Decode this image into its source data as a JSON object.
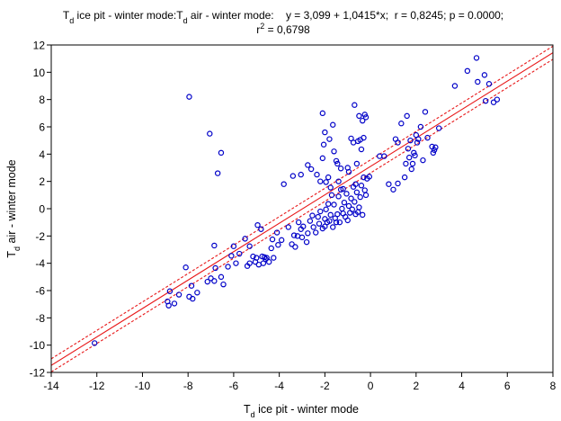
{
  "chart_data": {
    "type": "scatter",
    "title": {
      "line1_prefix": "T",
      "line1_sub": "d",
      "line1_mid": " ice pit - winter mode:T",
      "line1_sub2": "d",
      "line1_rest": " air - winter mode:    y = 3,099 + 1,0415*x;  r = 0,8245; p = 0.0000;",
      "line2_prefix": "r",
      "line2_sup": "2",
      "line2_rest": " = 0,6798"
    },
    "xlabel": {
      "prefix": "T",
      "sub": "d",
      "rest": " ice pit - winter mode"
    },
    "ylabel": {
      "prefix": "T",
      "sub": "d",
      "rest": " air - winter mode"
    },
    "xlim": [
      -14,
      8
    ],
    "ylim": [
      -12,
      12
    ],
    "xticks": [
      -14,
      -12,
      -10,
      -8,
      -6,
      -4,
      -2,
      0,
      2,
      4,
      6,
      8
    ],
    "yticks": [
      -12,
      -10,
      -8,
      -6,
      -4,
      -2,
      0,
      2,
      4,
      6,
      8,
      10,
      12
    ],
    "grid": false,
    "colors": {
      "points": "#0000c8",
      "fit": "#e8191a"
    },
    "regression": {
      "intercept": 3.099,
      "slope": 1.0415
    },
    "confidence_band_halfwidth": 0.48,
    "points": [
      [
        -12.1,
        -9.85
      ],
      [
        -8.9,
        -6.8
      ],
      [
        -8.85,
        -7.1
      ],
      [
        -8.8,
        -6.05
      ],
      [
        -8.6,
        -6.95
      ],
      [
        -8.4,
        -6.3
      ],
      [
        -8.1,
        -4.3
      ],
      [
        -7.95,
        -6.45
      ],
      [
        -7.85,
        -5.65
      ],
      [
        -7.8,
        -6.6
      ],
      [
        -7.6,
        -6.15
      ],
      [
        -7.15,
        -5.35
      ],
      [
        -7.0,
        -5.1
      ],
      [
        -6.85,
        -5.3
      ],
      [
        -6.8,
        -4.35
      ],
      [
        -6.85,
        -2.7
      ],
      [
        -6.55,
        -5.0
      ],
      [
        -6.45,
        -5.55
      ],
      [
        -6.25,
        -4.25
      ],
      [
        -6.1,
        -3.45
      ],
      [
        -6.0,
        -2.75
      ],
      [
        -5.9,
        -4.0
      ],
      [
        -5.75,
        -3.3
      ],
      [
        -5.5,
        -2.2
      ],
      [
        -5.4,
        -4.2
      ],
      [
        -5.3,
        -4.0
      ],
      [
        -5.3,
        -2.75
      ],
      [
        -5.15,
        -3.5
      ],
      [
        -5.05,
        -3.9
      ],
      [
        -5.0,
        -3.6
      ],
      [
        -4.95,
        -1.2
      ],
      [
        -4.9,
        -4.1
      ],
      [
        -4.8,
        -1.5
      ],
      [
        -4.75,
        -3.5
      ],
      [
        -4.7,
        -4.0
      ],
      [
        -4.65,
        -3.55
      ],
      [
        -4.6,
        -3.7
      ],
      [
        -4.55,
        -3.6
      ],
      [
        -4.45,
        -3.9
      ],
      [
        -4.35,
        -2.9
      ],
      [
        -4.3,
        -2.25
      ],
      [
        -4.25,
        -3.6
      ],
      [
        -4.1,
        -1.75
      ],
      [
        -4.05,
        -2.65
      ],
      [
        -3.9,
        -2.3
      ],
      [
        -3.6,
        -1.35
      ],
      [
        -3.45,
        -2.6
      ],
      [
        -3.35,
        -1.95
      ],
      [
        -3.3,
        -2.8
      ],
      [
        -3.2,
        -2.0
      ],
      [
        -3.15,
        -1.0
      ],
      [
        -3.05,
        -1.5
      ],
      [
        -3.0,
        -2.1
      ],
      [
        -2.95,
        -1.3
      ],
      [
        -2.8,
        -2.45
      ],
      [
        -2.75,
        -1.8
      ],
      [
        -2.65,
        -0.9
      ],
      [
        -2.55,
        -0.5
      ],
      [
        -2.5,
        -1.35
      ],
      [
        -2.4,
        -1.75
      ],
      [
        -2.3,
        -0.6
      ],
      [
        -2.25,
        -1.1
      ],
      [
        -2.2,
        -0.2
      ],
      [
        -2.1,
        -1.45
      ],
      [
        -2.0,
        -0.75
      ],
      [
        -2.0,
        -1.3
      ],
      [
        -1.95,
        -0.05
      ],
      [
        -1.9,
        -1.0
      ],
      [
        -1.85,
        0.35
      ],
      [
        -1.8,
        -0.9
      ],
      [
        -1.75,
        -0.45
      ],
      [
        -1.7,
        1.0
      ],
      [
        -1.65,
        -1.35
      ],
      [
        -1.6,
        0.3
      ],
      [
        -1.55,
        -0.7
      ],
      [
        -1.5,
        -1.0
      ],
      [
        -1.45,
        -0.4
      ],
      [
        -1.4,
        0.9
      ],
      [
        -1.35,
        -1.0
      ],
      [
        -1.3,
        1.4
      ],
      [
        -1.25,
        0.0
      ],
      [
        -1.2,
        -0.35
      ],
      [
        -1.15,
        0.45
      ],
      [
        -1.1,
        -0.6
      ],
      [
        -1.05,
        1.1
      ],
      [
        -1.0,
        -0.85
      ],
      [
        -0.95,
        0.2
      ],
      [
        -0.9,
        -0.3
      ],
      [
        -0.85,
        0.75
      ],
      [
        -0.8,
        -0.05
      ],
      [
        -0.75,
        1.6
      ],
      [
        -0.7,
        0.5
      ],
      [
        -0.65,
        -0.4
      ],
      [
        -0.6,
        1.2
      ],
      [
        -0.55,
        -0.25
      ],
      [
        -0.5,
        0.1
      ],
      [
        -0.45,
        0.85
      ],
      [
        -0.4,
        1.7
      ],
      [
        -0.35,
        -0.45
      ],
      [
        -0.3,
        2.3
      ],
      [
        -0.25,
        1.35
      ],
      [
        -0.2,
        1.0
      ],
      [
        -3.8,
        1.8
      ],
      [
        -3.4,
        2.4
      ],
      [
        -3.05,
        2.5
      ],
      [
        -2.75,
        3.2
      ],
      [
        -2.6,
        2.9
      ],
      [
        -2.35,
        2.5
      ],
      [
        -2.2,
        2.0
      ],
      [
        -2.1,
        3.7
      ],
      [
        -2.05,
        4.7
      ],
      [
        -2.0,
        5.6
      ],
      [
        -2.1,
        7.0
      ],
      [
        -1.95,
        1.95
      ],
      [
        -1.85,
        2.3
      ],
      [
        -1.8,
        5.1
      ],
      [
        -1.75,
        1.55
      ],
      [
        -1.65,
        6.15
      ],
      [
        -1.6,
        4.2
      ],
      [
        -1.5,
        3.5
      ],
      [
        -1.45,
        3.3
      ],
      [
        -1.4,
        2.0
      ],
      [
        -1.3,
        2.95
      ],
      [
        -1.2,
        1.45
      ],
      [
        -1.0,
        3.0
      ],
      [
        -0.95,
        2.7
      ],
      [
        -0.85,
        5.15
      ],
      [
        -0.75,
        4.85
      ],
      [
        -0.7,
        7.6
      ],
      [
        -0.65,
        1.8
      ],
      [
        -0.6,
        3.3
      ],
      [
        -0.55,
        4.95
      ],
      [
        -0.5,
        6.8
      ],
      [
        -0.45,
        5.05
      ],
      [
        -0.4,
        4.35
      ],
      [
        -0.35,
        6.45
      ],
      [
        -0.3,
        5.2
      ],
      [
        -0.25,
        6.9
      ],
      [
        -0.2,
        6.7
      ],
      [
        -0.15,
        2.2
      ],
      [
        -0.05,
        2.35
      ],
      [
        -7.95,
        8.2
      ],
      [
        -7.05,
        5.5
      ],
      [
        -6.55,
        4.1
      ],
      [
        -6.7,
        2.6
      ],
      [
        0.4,
        3.85
      ],
      [
        0.6,
        3.85
      ],
      [
        0.8,
        1.8
      ],
      [
        1.0,
        1.4
      ],
      [
        1.1,
        5.1
      ],
      [
        1.2,
        4.85
      ],
      [
        1.2,
        1.85
      ],
      [
        1.35,
        6.25
      ],
      [
        1.5,
        2.3
      ],
      [
        1.55,
        3.3
      ],
      [
        1.6,
        6.8
      ],
      [
        1.65,
        4.4
      ],
      [
        1.7,
        3.75
      ],
      [
        1.75,
        5.0
      ],
      [
        1.8,
        2.9
      ],
      [
        1.85,
        3.3
      ],
      [
        1.9,
        4.1
      ],
      [
        1.95,
        3.9
      ],
      [
        2.0,
        5.4
      ],
      [
        2.05,
        4.85
      ],
      [
        2.1,
        5.1
      ],
      [
        2.2,
        6.0
      ],
      [
        2.3,
        3.55
      ],
      [
        2.4,
        7.1
      ],
      [
        2.5,
        5.2
      ],
      [
        2.7,
        4.55
      ],
      [
        2.75,
        4.1
      ],
      [
        2.8,
        4.3
      ],
      [
        2.85,
        4.5
      ],
      [
        3.0,
        5.9
      ],
      [
        3.7,
        9.0
      ],
      [
        4.25,
        10.1
      ],
      [
        4.65,
        11.05
      ],
      [
        4.7,
        9.3
      ],
      [
        5.0,
        9.8
      ],
      [
        5.2,
        9.15
      ],
      [
        5.05,
        7.9
      ],
      [
        5.4,
        7.8
      ],
      [
        5.55,
        8.0
      ]
    ]
  }
}
